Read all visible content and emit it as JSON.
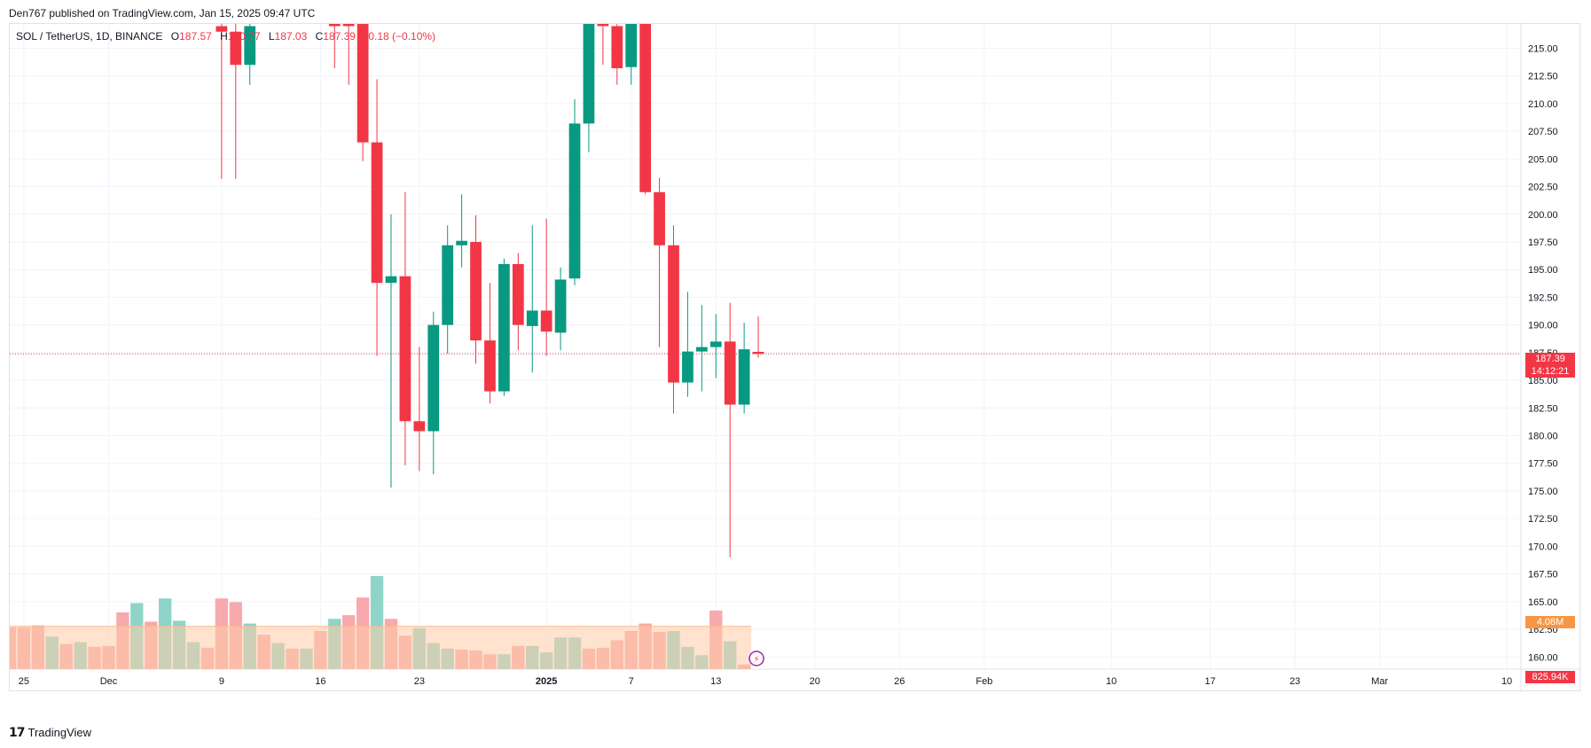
{
  "header": {
    "credit": "Den767 published on TradingView.com, Jan 15, 2025 09:47 UTC"
  },
  "legend": {
    "symbol": "SOL / TetherUS, 1D, BINANCE",
    "open_label": "O",
    "open": "187.57",
    "high_label": "H",
    "high": "190.77",
    "low_label": "L",
    "low": "187.03",
    "close_label": "C",
    "close": "187.39",
    "change": "−0.18 (−0.10%)"
  },
  "price_tags": {
    "last_price": "187.39",
    "countdown": "14:12:21",
    "volume_ma": "4.08M",
    "volume": "825.94K"
  },
  "footer": {
    "brand": "TradingView"
  },
  "colors": {
    "up": "#089981",
    "down": "#f23645",
    "volume_up": "#8fd4c9",
    "volume_down": "#f7a9ad",
    "volume_ma_fill": "#ffcca8",
    "volume_ma_tag": "#f89646"
  },
  "chart_data": {
    "type": "candlestick",
    "y_ticks": [
      "160.00",
      "162.50",
      "165.00",
      "167.50",
      "170.00",
      "172.50",
      "175.00",
      "177.50",
      "180.00",
      "182.50",
      "185.00",
      "187.50",
      "190.00",
      "192.50",
      "195.00",
      "197.50",
      "200.00",
      "202.50",
      "205.00",
      "207.50",
      "210.00",
      "212.50",
      "215.00"
    ],
    "ylim": [
      158.9,
      217.2
    ],
    "x_ticks": [
      {
        "label": "25",
        "date": "2024-11-25"
      },
      {
        "label": "Dec",
        "date": "2024-12-01"
      },
      {
        "label": "9",
        "date": "2024-12-09"
      },
      {
        "label": "16",
        "date": "2024-12-16"
      },
      {
        "label": "23",
        "date": "2024-12-23"
      },
      {
        "label": "2025",
        "date": "2025-01-01",
        "bold": true
      },
      {
        "label": "7",
        "date": "2025-01-07"
      },
      {
        "label": "13",
        "date": "2025-01-13"
      },
      {
        "label": "20",
        "date": "2025-01-20"
      },
      {
        "label": "26",
        "date": "2025-01-26"
      },
      {
        "label": "Feb",
        "date": "2025-02-01"
      },
      {
        "label": "10",
        "date": "2025-02-10"
      },
      {
        "label": "17",
        "date": "2025-02-17"
      },
      {
        "label": "23",
        "date": "2025-02-23"
      },
      {
        "label": "Mar",
        "date": "2025-03-01"
      },
      {
        "label": "10",
        "date": "2025-03-10"
      }
    ],
    "xlim": [
      "2024-11-24",
      "2025-03-11"
    ],
    "last_price_line": 187.39,
    "candles": [
      {
        "date": "2024-12-09",
        "o": 217,
        "h": 219,
        "l": 203.2,
        "c": 216.5
      },
      {
        "date": "2024-12-10",
        "o": 216.5,
        "h": 219,
        "l": 203.2,
        "c": 213.5
      },
      {
        "date": "2024-12-11",
        "o": 213.5,
        "h": 218,
        "l": 211.7,
        "c": 217
      },
      {
        "date": "2024-12-17",
        "o": 218,
        "h": 219,
        "l": 213.2,
        "c": 217
      },
      {
        "date": "2024-12-18",
        "o": 219,
        "h": 220,
        "l": 211.7,
        "c": 217
      },
      {
        "date": "2024-12-19",
        "o": 219,
        "h": 220,
        "l": 204.8,
        "c": 206.5
      },
      {
        "date": "2024-12-20",
        "o": 206.5,
        "h": 212.2,
        "l": 187.2,
        "c": 193.8
      },
      {
        "date": "2024-12-21",
        "o": 193.8,
        "h": 200,
        "l": 175.3,
        "c": 194.4
      },
      {
        "date": "2024-12-22",
        "o": 194.4,
        "h": 202,
        "l": 177.3,
        "c": 181.3
      },
      {
        "date": "2024-12-23",
        "o": 181.3,
        "h": 188,
        "l": 176.8,
        "c": 180.4
      },
      {
        "date": "2024-12-24",
        "o": 180.4,
        "h": 191.2,
        "l": 176.5,
        "c": 190
      },
      {
        "date": "2024-12-25",
        "o": 190,
        "h": 199,
        "l": 187.4,
        "c": 197.2
      },
      {
        "date": "2024-12-26",
        "o": 197.2,
        "h": 201.8,
        "l": 195.2,
        "c": 197.6
      },
      {
        "date": "2024-12-27",
        "o": 197.5,
        "h": 199.9,
        "l": 186.5,
        "c": 188.6
      },
      {
        "date": "2024-12-28",
        "o": 188.6,
        "h": 193.8,
        "l": 182.9,
        "c": 184
      },
      {
        "date": "2024-12-29",
        "o": 184,
        "h": 196,
        "l": 183.6,
        "c": 195.5
      },
      {
        "date": "2024-12-30",
        "o": 195.5,
        "h": 196.5,
        "l": 187.7,
        "c": 190
      },
      {
        "date": "2024-12-31",
        "o": 189.9,
        "h": 199,
        "l": 185.7,
        "c": 191.3
      },
      {
        "date": "2025-01-01",
        "o": 191.3,
        "h": 199.6,
        "l": 187.2,
        "c": 189.4
      },
      {
        "date": "2025-01-02",
        "o": 189.3,
        "h": 195.2,
        "l": 187.7,
        "c": 194.1
      },
      {
        "date": "2025-01-03",
        "o": 194.2,
        "h": 210.4,
        "l": 193.6,
        "c": 208.2
      },
      {
        "date": "2025-01-04",
        "o": 208.2,
        "h": 218,
        "l": 205.6,
        "c": 218
      },
      {
        "date": "2025-01-05",
        "o": 218,
        "h": 219,
        "l": 213.5,
        "c": 217
      },
      {
        "date": "2025-01-06",
        "o": 217,
        "h": 219,
        "l": 211.7,
        "c": 213.2
      },
      {
        "date": "2025-01-07",
        "o": 213.3,
        "h": 218,
        "l": 211.7,
        "c": 217.5
      },
      {
        "date": "2025-01-08",
        "o": 218,
        "h": 219,
        "l": 201.8,
        "c": 202
      },
      {
        "date": "2025-01-09",
        "o": 202,
        "h": 203.3,
        "l": 188,
        "c": 197.2
      },
      {
        "date": "2025-01-10",
        "o": 197.2,
        "h": 199,
        "l": 182,
        "c": 184.8
      },
      {
        "date": "2025-01-11",
        "o": 184.8,
        "h": 193,
        "l": 183.5,
        "c": 187.6
      },
      {
        "date": "2025-01-12",
        "o": 187.6,
        "h": 191.8,
        "l": 184,
        "c": 188
      },
      {
        "date": "2025-01-13",
        "o": 188,
        "h": 191,
        "l": 185.2,
        "c": 188.5
      },
      {
        "date": "2025-01-14",
        "o": 188.5,
        "h": 192,
        "l": 169.0,
        "c": 182.8
      },
      {
        "date": "2025-01-15",
        "o": 182.8,
        "h": 190.2,
        "l": 182,
        "c": 187.8
      },
      {
        "date": "2025-01-16",
        "o": 187.57,
        "h": 190.77,
        "l": 187.03,
        "c": 187.39
      }
    ],
    "volume": {
      "max_value_ratio": 1.0,
      "bars": [
        {
          "date": "2024-11-24",
          "v": 0.45,
          "up": false
        },
        {
          "date": "2024-11-25",
          "v": 0.45,
          "up": false
        },
        {
          "date": "2024-11-26",
          "v": 0.47,
          "up": false
        },
        {
          "date": "2024-11-27",
          "v": 0.35,
          "up": true
        },
        {
          "date": "2024-11-28",
          "v": 0.27,
          "up": false
        },
        {
          "date": "2024-11-29",
          "v": 0.29,
          "up": true
        },
        {
          "date": "2024-11-30",
          "v": 0.24,
          "up": false
        },
        {
          "date": "2024-12-01",
          "v": 0.25,
          "up": false
        },
        {
          "date": "2024-12-02",
          "v": 0.61,
          "up": false
        },
        {
          "date": "2024-12-03",
          "v": 0.71,
          "up": true
        },
        {
          "date": "2024-12-04",
          "v": 0.51,
          "up": false
        },
        {
          "date": "2024-12-05",
          "v": 0.76,
          "up": true
        },
        {
          "date": "2024-12-06",
          "v": 0.52,
          "up": true
        },
        {
          "date": "2024-12-07",
          "v": 0.29,
          "up": true
        },
        {
          "date": "2024-12-08",
          "v": 0.23,
          "up": false
        },
        {
          "date": "2024-12-09",
          "v": 0.76,
          "up": false
        },
        {
          "date": "2024-12-10",
          "v": 0.72,
          "up": false
        },
        {
          "date": "2024-12-11",
          "v": 0.49,
          "up": true
        },
        {
          "date": "2024-12-12",
          "v": 0.37,
          "up": false
        },
        {
          "date": "2024-12-13",
          "v": 0.28,
          "up": true
        },
        {
          "date": "2024-12-14",
          "v": 0.22,
          "up": false
        },
        {
          "date": "2024-12-15",
          "v": 0.22,
          "up": true
        },
        {
          "date": "2024-12-16",
          "v": 0.41,
          "up": false
        },
        {
          "date": "2024-12-17",
          "v": 0.54,
          "up": true
        },
        {
          "date": "2024-12-18",
          "v": 0.58,
          "up": false
        },
        {
          "date": "2024-12-19",
          "v": 0.77,
          "up": false
        },
        {
          "date": "2024-12-20",
          "v": 1.0,
          "up": true
        },
        {
          "date": "2024-12-21",
          "v": 0.54,
          "up": false
        },
        {
          "date": "2024-12-22",
          "v": 0.36,
          "up": false
        },
        {
          "date": "2024-12-23",
          "v": 0.44,
          "up": true
        },
        {
          "date": "2024-12-24",
          "v": 0.28,
          "up": true
        },
        {
          "date": "2024-12-25",
          "v": 0.22,
          "up": true
        },
        {
          "date": "2024-12-26",
          "v": 0.21,
          "up": false
        },
        {
          "date": "2024-12-27",
          "v": 0.2,
          "up": false
        },
        {
          "date": "2024-12-28",
          "v": 0.16,
          "up": false
        },
        {
          "date": "2024-12-29",
          "v": 0.16,
          "up": true
        },
        {
          "date": "2024-12-30",
          "v": 0.25,
          "up": false
        },
        {
          "date": "2024-12-31",
          "v": 0.25,
          "up": true
        },
        {
          "date": "2025-01-01",
          "v": 0.18,
          "up": true
        },
        {
          "date": "2025-01-02",
          "v": 0.34,
          "up": true
        },
        {
          "date": "2025-01-03",
          "v": 0.34,
          "up": true
        },
        {
          "date": "2025-01-04",
          "v": 0.22,
          "up": false
        },
        {
          "date": "2025-01-05",
          "v": 0.23,
          "up": false
        },
        {
          "date": "2025-01-06",
          "v": 0.31,
          "up": false
        },
        {
          "date": "2025-01-07",
          "v": 0.41,
          "up": false
        },
        {
          "date": "2025-01-08",
          "v": 0.49,
          "up": false
        },
        {
          "date": "2025-01-09",
          "v": 0.4,
          "up": false
        },
        {
          "date": "2025-01-10",
          "v": 0.41,
          "up": true
        },
        {
          "date": "2025-01-11",
          "v": 0.24,
          "up": true
        },
        {
          "date": "2025-01-12",
          "v": 0.15,
          "up": true
        },
        {
          "date": "2025-01-13",
          "v": 0.63,
          "up": false
        },
        {
          "date": "2025-01-14",
          "v": 0.3,
          "up": true
        },
        {
          "date": "2025-01-15",
          "v": 0.05,
          "up": false
        }
      ],
      "ma_level": 0.46
    }
  }
}
